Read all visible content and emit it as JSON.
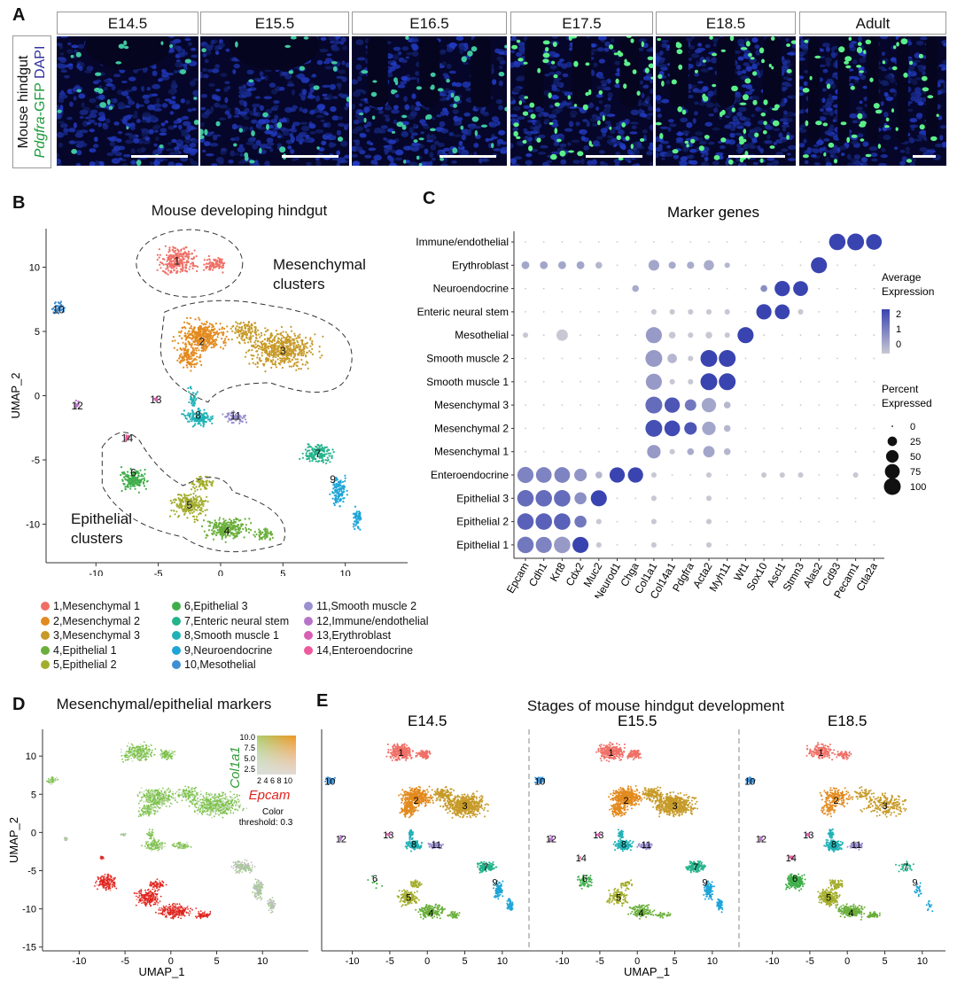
{
  "panels": {
    "A": "A",
    "B": "B",
    "C": "C",
    "D": "D",
    "E": "E"
  },
  "panelA": {
    "side_label_1": "Mouse hindgut",
    "side_label_2a": "Pdgfra",
    "side_label_2b": "-GFP ",
    "side_label_2c": "DAPI",
    "stages": [
      "E14.5",
      "E15.5",
      "E16.5",
      "E17.5",
      "E18.5",
      "Adult"
    ]
  },
  "panelB": {
    "title": "Mouse developing hindgut",
    "mes_label_1": "Mesenchymal",
    "mes_label_2": "clusters",
    "epi_label_1": "Epithelial",
    "epi_label_2": "clusters",
    "xlabel": "UMAP_1",
    "ylabel": "UMAP_2",
    "xticks": [
      "-10",
      "-5",
      "0",
      "5",
      "10"
    ],
    "yticks": [
      "10",
      "5",
      "0",
      "-5",
      "-10"
    ]
  },
  "clusters": [
    {
      "id": "1",
      "name": "Mesenchymal 1",
      "label": "1,Mesenchymal 1",
      "color": "#ef6f66"
    },
    {
      "id": "2",
      "name": "Mesenchymal 2",
      "label": "2,Mesenchymal 2",
      "color": "#e38a1e"
    },
    {
      "id": "3",
      "name": "Mesenchymal 3",
      "label": "3,Mesenchymal 3",
      "color": "#c79a28"
    },
    {
      "id": "4",
      "name": "Epithelial 1",
      "label": "4,Epithelial 1",
      "color": "#6aaf3a"
    },
    {
      "id": "5",
      "name": "Epithelial 2",
      "label": "5,Epithelial 2",
      "color": "#a3ad2c"
    },
    {
      "id": "6",
      "name": "Epithelial 3",
      "label": "6,Epithelial 3",
      "color": "#3fae4a"
    },
    {
      "id": "7",
      "name": "Enteric neural stem",
      "label": "7,Enteric neural stem",
      "color": "#25b38c"
    },
    {
      "id": "8",
      "name": "Smooth muscle 1",
      "label": "8,Smooth muscle 1",
      "color": "#20b2b6"
    },
    {
      "id": "9",
      "name": "Neuroendocrine",
      "label": "9,Neuroendocrine",
      "color": "#1ea5d8"
    },
    {
      "id": "10",
      "name": "Mesothelial",
      "label": "10,Mesothelial",
      "color": "#3f8fd2"
    },
    {
      "id": "11",
      "name": "Smooth muscle 2",
      "label": "11,Smooth muscle 2",
      "color": "#9a8fcf"
    },
    {
      "id": "12",
      "name": "Immune/endothelial",
      "label": "12,Immune/endothelial",
      "color": "#b675c9"
    },
    {
      "id": "13",
      "name": "Erythroblast",
      "label": "13,Erythroblast",
      "color": "#d85fb4"
    },
    {
      "id": "14",
      "name": "Enteroendocrine",
      "label": "14,Enteroendocrine",
      "color": "#ee5b9c"
    }
  ],
  "chart_data": [
    {
      "type": "scatter",
      "panel": "B",
      "title": "Mouse developing hindgut",
      "xlabel": "UMAP_1",
      "ylabel": "UMAP_2",
      "xlim": [
        -14,
        15
      ],
      "ylim": [
        -13,
        13
      ],
      "cluster_centers": [
        {
          "id": "1",
          "x": -3.5,
          "y": 10.5
        },
        {
          "id": "2",
          "x": -1.5,
          "y": 4.2
        },
        {
          "id": "3",
          "x": 5,
          "y": 3.5
        },
        {
          "id": "4",
          "x": 0.5,
          "y": -10.5
        },
        {
          "id": "5",
          "x": -2.5,
          "y": -8.5
        },
        {
          "id": "6",
          "x": -7,
          "y": -6
        },
        {
          "id": "7",
          "x": 7.8,
          "y": -4.5
        },
        {
          "id": "8",
          "x": -1.8,
          "y": -1.5
        },
        {
          "id": "9",
          "x": 9,
          "y": -6.5
        },
        {
          "id": "10",
          "x": -13,
          "y": 6.7
        },
        {
          "id": "11",
          "x": 1.2,
          "y": -1.6
        },
        {
          "id": "12",
          "x": -11.5,
          "y": -0.8
        },
        {
          "id": "13",
          "x": -5.2,
          "y": -0.3
        },
        {
          "id": "14",
          "x": -7.5,
          "y": -3.3
        }
      ]
    },
    {
      "type": "dotplot",
      "panel": "C",
      "title": "Marker genes",
      "genes": [
        "Epcam",
        "Cdh1",
        "Krt8",
        "Cdx2",
        "Muc2",
        "Neurod1",
        "Chga",
        "Col1a1",
        "Col14a1",
        "Pdgfra",
        "Acta2",
        "Myh11",
        "Wt1",
        "Sox10",
        "Ascl1",
        "Stmn3",
        "Alas2",
        "Cd93",
        "Pecam1",
        "Ctla2a"
      ],
      "cell_types": [
        "Immune/endothelial",
        "Erythroblast",
        "Neuroendocrine",
        "Enteric neural stem",
        "Mesothelial",
        "Smooth muscle 2",
        "Smooth muscle 1",
        "Mesenchymal 3",
        "Mesenchymal 2",
        "Mesenchymal 1",
        "Enteroendocrine",
        "Epithelial 3",
        "Epithelial 2",
        "Epithelial 1"
      ],
      "percent_expressed": [
        [
          0,
          0,
          0,
          0,
          0,
          0,
          0,
          0,
          0,
          0,
          0,
          0,
          0,
          0,
          0,
          0,
          0,
          95,
          100,
          85
        ],
        [
          15,
          15,
          15,
          15,
          10,
          0,
          0,
          35,
          12,
          12,
          30,
          5,
          0,
          0,
          0,
          0,
          90,
          0,
          0,
          0
        ],
        [
          0,
          0,
          0,
          0,
          0,
          0,
          10,
          0,
          0,
          0,
          0,
          0,
          0,
          10,
          80,
          75,
          0,
          0,
          0,
          0
        ],
        [
          0,
          0,
          0,
          0,
          0,
          0,
          0,
          5,
          5,
          5,
          5,
          5,
          0,
          80,
          75,
          5,
          0,
          0,
          0,
          0
        ],
        [
          5,
          0,
          40,
          0,
          0,
          0,
          0,
          90,
          10,
          5,
          10,
          5,
          90,
          0,
          0,
          0,
          0,
          0,
          0,
          0
        ],
        [
          0,
          0,
          0,
          0,
          0,
          0,
          0,
          100,
          25,
          5,
          100,
          100,
          0,
          0,
          0,
          0,
          0,
          0,
          0,
          0
        ],
        [
          0,
          0,
          0,
          0,
          0,
          0,
          0,
          90,
          5,
          5,
          100,
          100,
          0,
          0,
          0,
          0,
          0,
          0,
          0,
          0
        ],
        [
          0,
          0,
          0,
          0,
          0,
          0,
          0,
          100,
          80,
          40,
          70,
          10,
          0,
          0,
          0,
          0,
          0,
          0,
          0,
          0
        ],
        [
          0,
          0,
          0,
          0,
          0,
          0,
          0,
          100,
          85,
          50,
          60,
          10,
          0,
          0,
          0,
          0,
          0,
          0,
          0,
          0
        ],
        [
          0,
          0,
          0,
          0,
          0,
          0,
          0,
          60,
          5,
          10,
          40,
          10,
          0,
          0,
          0,
          0,
          0,
          0,
          0,
          0
        ],
        [
          90,
          85,
          85,
          50,
          10,
          80,
          80,
          5,
          0,
          0,
          5,
          0,
          0,
          5,
          5,
          5,
          0,
          0,
          5,
          0
        ],
        [
          95,
          95,
          95,
          45,
          90,
          0,
          0,
          5,
          0,
          0,
          5,
          0,
          0,
          0,
          0,
          0,
          0,
          0,
          0,
          0
        ],
        [
          95,
          95,
          95,
          45,
          5,
          0,
          0,
          5,
          0,
          0,
          5,
          0,
          0,
          0,
          0,
          0,
          0,
          0,
          0,
          0
        ],
        [
          95,
          90,
          95,
          90,
          5,
          0,
          0,
          5,
          0,
          0,
          5,
          0,
          0,
          0,
          0,
          0,
          0,
          0,
          0,
          0
        ]
      ],
      "average_expression": [
        [
          0,
          0,
          0,
          0,
          0,
          0,
          0,
          0,
          0,
          0,
          0,
          0,
          0,
          0,
          0,
          0,
          0,
          2.3,
          2.3,
          2.3
        ],
        [
          0.6,
          0.6,
          0.6,
          0.6,
          0.3,
          0,
          0,
          0.6,
          0.5,
          0.5,
          0.5,
          0.3,
          0,
          0,
          0,
          0,
          2.3,
          0,
          0,
          0
        ],
        [
          0,
          0,
          0,
          0,
          0,
          0,
          0.5,
          0,
          0,
          0,
          0,
          0,
          0,
          1,
          2.3,
          2.3,
          0,
          0,
          0,
          0
        ],
        [
          0,
          0,
          0,
          0,
          0,
          0,
          0,
          0,
          0,
          0,
          0,
          0,
          0,
          2.3,
          2.3,
          0,
          0,
          0,
          0,
          0
        ],
        [
          0,
          0,
          0,
          0,
          0,
          0,
          0,
          0.8,
          0,
          0,
          0,
          0,
          2.3,
          0,
          0,
          0,
          0,
          0,
          0,
          0
        ],
        [
          0,
          0,
          0,
          0,
          0,
          0,
          0,
          0.8,
          0.3,
          0,
          2.3,
          2.3,
          0,
          0,
          0,
          0,
          0,
          0,
          0,
          0
        ],
        [
          0,
          0,
          0,
          0,
          0,
          0,
          0,
          0.8,
          0,
          0,
          2.3,
          2.3,
          0,
          0,
          0,
          0,
          0,
          0,
          0,
          0
        ],
        [
          0,
          0,
          0,
          0,
          0,
          0,
          0,
          1.6,
          2,
          1.4,
          0.6,
          0.3,
          0,
          0,
          0,
          0,
          0,
          0,
          0,
          0
        ],
        [
          0,
          0,
          0,
          0,
          0,
          0,
          0,
          2.1,
          2.2,
          2,
          0.6,
          0.3,
          0,
          0,
          0,
          0,
          0,
          0,
          0,
          0
        ],
        [
          0,
          0,
          0,
          0,
          0,
          0,
          0,
          0.8,
          0,
          0.5,
          0.6,
          0.3,
          0,
          0,
          0,
          0,
          0,
          0,
          0,
          0
        ],
        [
          1.2,
          1.2,
          1.2,
          0.9,
          0.3,
          2.3,
          2.3,
          0,
          0,
          0,
          0,
          0,
          0,
          0,
          0,
          0,
          0,
          0,
          0,
          0
        ],
        [
          1.6,
          1.6,
          1.6,
          1,
          2.3,
          0,
          0,
          0,
          0,
          0,
          0,
          0,
          0,
          0,
          0,
          0,
          0,
          0,
          0,
          0
        ],
        [
          1.8,
          1.8,
          1.8,
          1.4,
          0,
          0,
          0,
          0,
          0,
          0,
          0,
          0,
          0,
          0,
          0,
          0,
          0,
          0,
          0,
          0
        ],
        [
          1.4,
          1.2,
          0.8,
          2.3,
          0,
          0,
          0,
          0,
          0,
          0,
          0,
          0,
          0,
          0,
          0,
          0,
          0,
          0,
          0,
          0
        ]
      ],
      "avg_legend_title": "Average\nExpression",
      "avg_ticks": [
        "2",
        "1",
        "0"
      ],
      "pct_legend_title": "Percent\nExpressed",
      "pct_ticks": [
        "0",
        "25",
        "50",
        "75",
        "100"
      ]
    },
    {
      "type": "scatter",
      "panel": "D",
      "title": "Mesenchymal/epithelial markers",
      "xlabel": "UMAP_1",
      "ylabel": "UMAP_2",
      "xticks": [
        "-10",
        "-5",
        "0",
        "5",
        "10"
      ],
      "yticks": [
        "10",
        "5",
        "0",
        "-5",
        "-10",
        "-15"
      ],
      "color_scale_ticks_y": [
        "10.0",
        "7.5",
        "5.0",
        "2.5"
      ],
      "color_scale_ticks_x": "2 4 6 8 10",
      "gene_y": "Col1a1",
      "gene_x": "Epcam",
      "threshold_1": "Color",
      "threshold_2": "threshold: 0.3"
    },
    {
      "type": "scatter",
      "panel": "E",
      "title": "Stages of mouse hindgut development",
      "stages": [
        "E14.5",
        "E15.5",
        "E18.5"
      ],
      "xlabel": "UMAP_1",
      "xticks": [
        "-10",
        "-5",
        "0",
        "5",
        "10"
      ]
    }
  ]
}
